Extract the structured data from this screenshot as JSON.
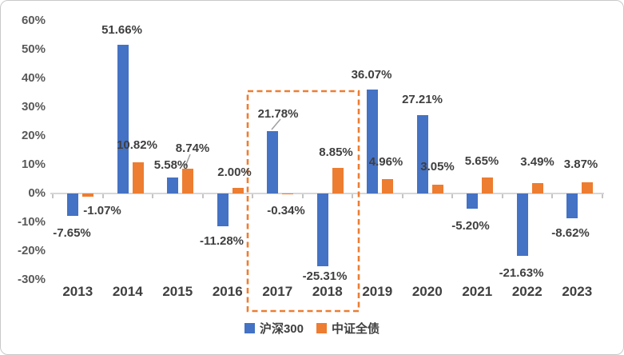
{
  "chart_data": {
    "type": "bar",
    "title": "",
    "categories": [
      "2013",
      "2014",
      "2015",
      "2016",
      "2017",
      "2018",
      "2019",
      "2020",
      "2021",
      "2022",
      "2023"
    ],
    "series": [
      {
        "name": "沪深300",
        "color": "#4472C4",
        "values": [
          -7.65,
          51.66,
          5.58,
          -11.28,
          21.78,
          -25.31,
          36.07,
          27.21,
          -5.2,
          -21.63,
          -8.62
        ],
        "labels": [
          "-7.65%",
          "51.66%",
          "5.58%",
          "-11.28%",
          "21.78%",
          "-25.31%",
          "36.07%",
          "27.21%",
          "-5.20%",
          "-21.63%",
          "-8.62%"
        ]
      },
      {
        "name": "中证全债",
        "color": "#ED7D31",
        "values": [
          -1.07,
          10.82,
          8.74,
          2.0,
          -0.34,
          8.85,
          4.96,
          3.05,
          5.65,
          3.49,
          3.87
        ],
        "labels": [
          "-1.07%",
          "10.82%",
          "8.74%",
          "2.00%",
          "-0.34%",
          "8.85%",
          "4.96%",
          "3.05%",
          "5.65%",
          "3.49%",
          "3.87%"
        ]
      }
    ],
    "y_axis": {
      "ticks": [
        {
          "value": 60,
          "label": "60%"
        },
        {
          "value": 50,
          "label": "50%"
        },
        {
          "value": 40,
          "label": "40%"
        },
        {
          "value": 30,
          "label": "30%"
        },
        {
          "value": 20,
          "label": "20%"
        },
        {
          "value": 10,
          "label": "10%"
        },
        {
          "value": 0,
          "label": "0%"
        },
        {
          "value": -10,
          "label": "-10%"
        },
        {
          "value": -20,
          "label": "-20%"
        },
        {
          "value": -30,
          "label": "-30%"
        }
      ]
    },
    "ylim": [
      -30,
      60
    ],
    "grid": false,
    "legend_position": "bottom",
    "highlight": {
      "categories": [
        "2017",
        "2018"
      ],
      "style": "dashed",
      "color": "#ED7D31"
    }
  },
  "legend": {
    "items": [
      {
        "label": "沪深300",
        "color": "#4472C4"
      },
      {
        "label": "中证全债",
        "color": "#ED7D31"
      }
    ]
  }
}
